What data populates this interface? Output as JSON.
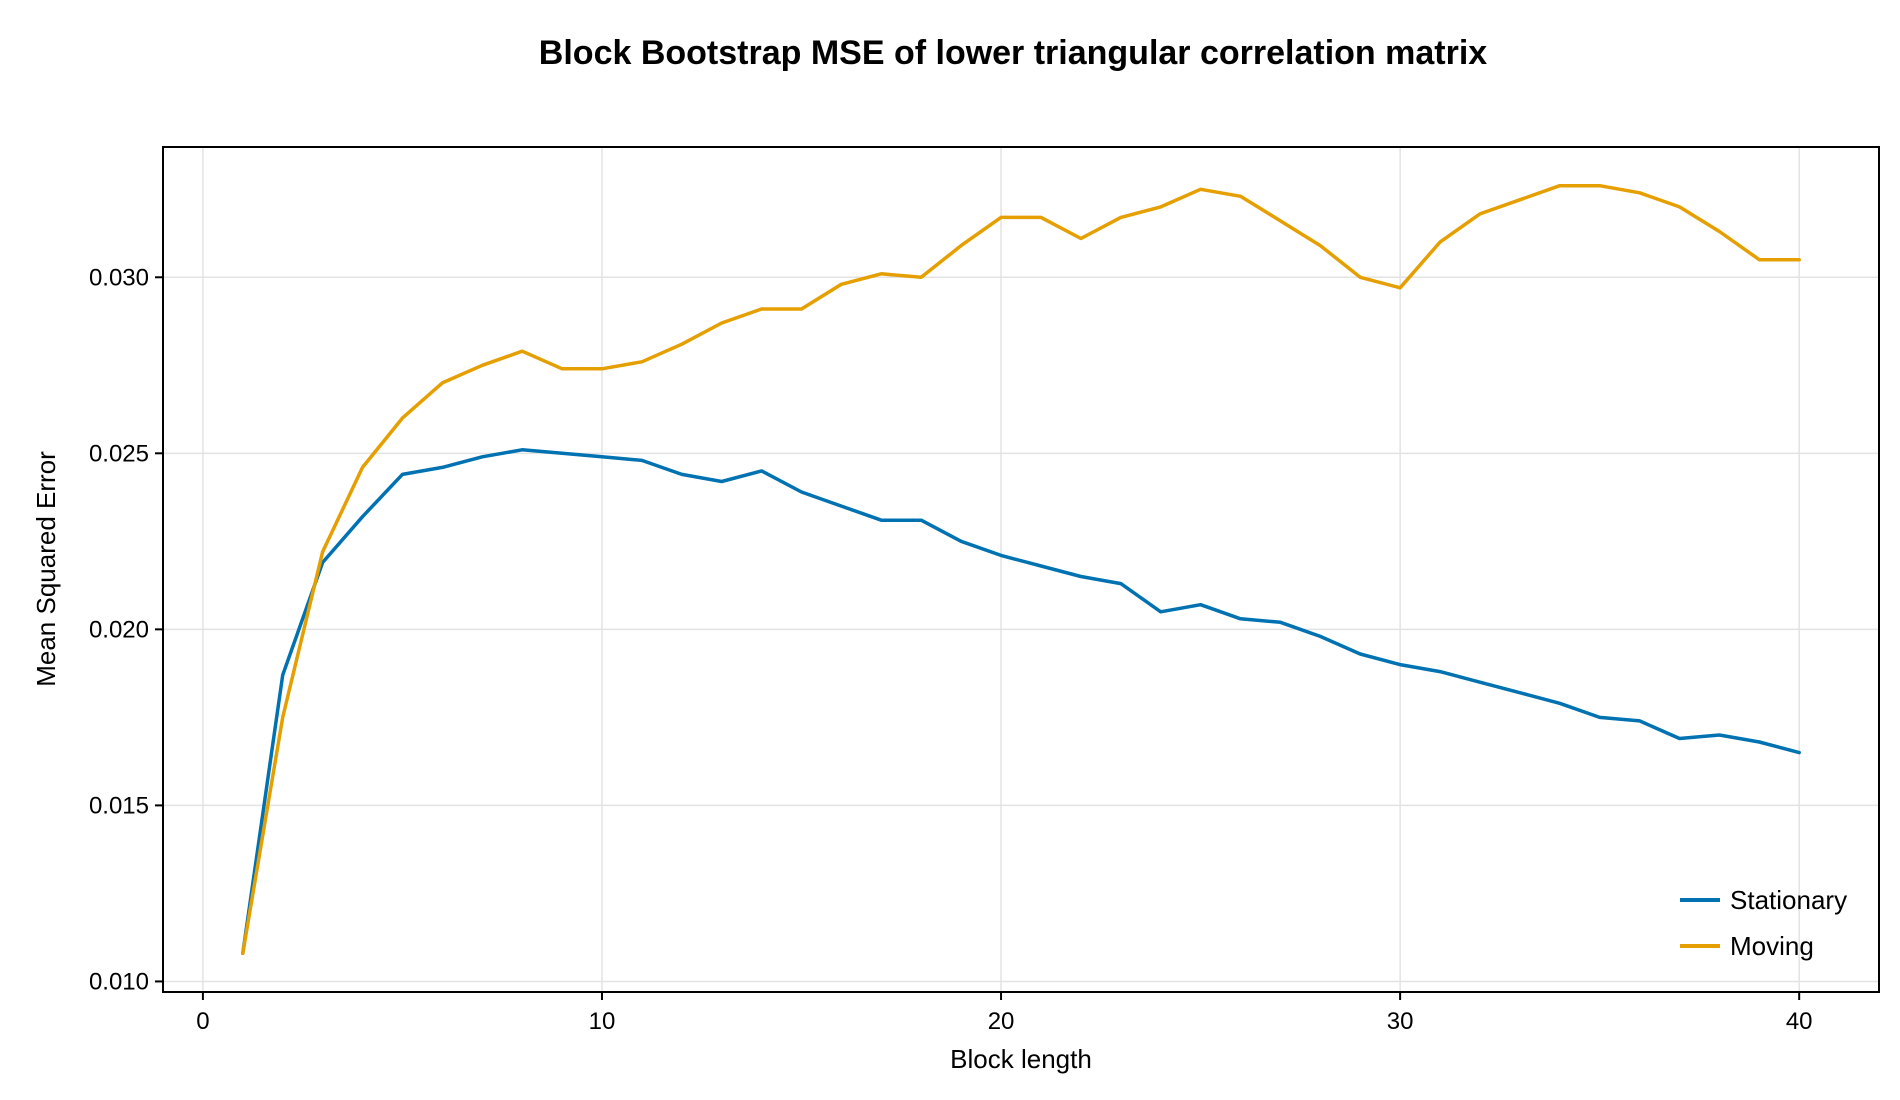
{
  "chart_data": {
    "type": "line",
    "title": "Block Bootstrap MSE of lower triangular correlation matrix",
    "xlabel": "Block length",
    "ylabel": "Mean Squared Error",
    "xlim": [
      -1,
      42
    ],
    "ylim": [
      0.0097,
      0.0337
    ],
    "xticks": [
      0,
      10,
      20,
      30,
      40
    ],
    "xtick_labels": [
      "0",
      "10",
      "20",
      "30",
      "40"
    ],
    "yticks": [
      0.01,
      0.015,
      0.02,
      0.025,
      0.03
    ],
    "ytick_labels": [
      "0.010",
      "0.015",
      "0.020",
      "0.025",
      "0.030"
    ],
    "grid": true,
    "legend_position": "bottom-right",
    "x": [
      1,
      2,
      3,
      4,
      5,
      6,
      7,
      8,
      9,
      10,
      11,
      12,
      13,
      14,
      15,
      16,
      17,
      18,
      19,
      20,
      21,
      22,
      23,
      24,
      25,
      26,
      27,
      28,
      29,
      30,
      31,
      32,
      33,
      34,
      35,
      36,
      37,
      38,
      39,
      40
    ],
    "series": [
      {
        "name": "Stationary",
        "color": "#0072b2",
        "values": [
          0.0108,
          0.0187,
          0.0219,
          0.0232,
          0.0244,
          0.0246,
          0.0249,
          0.0251,
          0.025,
          0.0249,
          0.0248,
          0.0244,
          0.0242,
          0.0245,
          0.0239,
          0.0235,
          0.0231,
          0.0231,
          0.0225,
          0.0221,
          0.0218,
          0.0215,
          0.0213,
          0.0205,
          0.0207,
          0.0203,
          0.0202,
          0.0198,
          0.0193,
          0.019,
          0.0188,
          0.0185,
          0.0182,
          0.0179,
          0.0175,
          0.0174,
          0.0169,
          0.017,
          0.0168,
          0.0165
        ]
      },
      {
        "name": "Moving",
        "color": "#e69f00",
        "values": [
          0.0108,
          0.0175,
          0.0222,
          0.0246,
          0.026,
          0.027,
          0.0275,
          0.0279,
          0.0274,
          0.0274,
          0.0276,
          0.0281,
          0.0287,
          0.0291,
          0.0291,
          0.0298,
          0.0301,
          0.03,
          0.0309,
          0.0317,
          0.0317,
          0.0311,
          0.0317,
          0.032,
          0.0325,
          0.0323,
          0.0316,
          0.0309,
          0.03,
          0.0297,
          0.031,
          0.0318,
          0.0322,
          0.0326,
          0.0326,
          0.0324,
          0.032,
          0.0313,
          0.0305,
          0.0305
        ]
      }
    ]
  }
}
